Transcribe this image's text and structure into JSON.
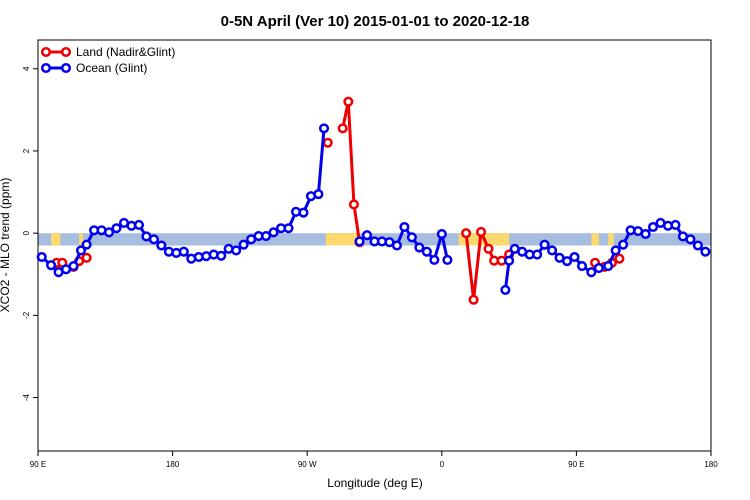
{
  "chart_data": {
    "type": "line",
    "title": "0-5N April (Ver 10)   2015-01-01 to 2020-12-18",
    "xlabel": "Longitude (deg E)",
    "ylabel": "XCO2 - MLO trend (ppm)",
    "xlim": [
      0,
      360
    ],
    "ylim": [
      -5.3,
      4.7
    ],
    "x_ticks": [
      {
        "value": 0,
        "label": "90 E"
      },
      {
        "value": 72,
        "label": "180"
      },
      {
        "value": 144,
        "label": "90 W"
      },
      {
        "value": 216,
        "label": "0"
      },
      {
        "value": 288,
        "label": "90 E"
      },
      {
        "value": 360,
        "label": "180"
      }
    ],
    "y_ticks": [
      {
        "value": 4,
        "label": "4"
      },
      {
        "value": 2,
        "label": "2"
      },
      {
        "value": 0,
        "label": "0"
      },
      {
        "value": -2,
        "label": "-2"
      },
      {
        "value": -4,
        "label": "-4"
      }
    ],
    "legend": {
      "position": "top-left",
      "entries": [
        {
          "name": "Land (Nadir&Glint)",
          "color": "#ee0000"
        },
        {
          "name": "Ocean (Glint)",
          "color": "#0000ee"
        }
      ]
    },
    "band": {
      "ymin": -0.3,
      "ymax": 0,
      "ocean_color": "#a6bde0",
      "land_color": "#fcd86e",
      "land_ranges": [
        [
          7,
          12
        ],
        [
          22,
          24
        ],
        [
          154,
          172
        ],
        [
          225,
          252
        ],
        [
          296,
          300
        ],
        [
          305,
          308
        ]
      ]
    },
    "series": [
      {
        "name": "Land (Nadir&Glint)",
        "color": "#ee0000",
        "segments": [
          [
            [
              10,
              -0.72
            ],
            [
              13,
              -0.72
            ]
          ],
          [
            [
              19,
              -0.82
            ],
            [
              22,
              -0.68
            ],
            [
              26,
              -0.6
            ]
          ],
          [
            [
              155,
              2.2
            ]
          ],
          [
            [
              163,
              2.55
            ],
            [
              166,
              3.2
            ],
            [
              169,
              0.7
            ],
            [
              172,
              -0.22
            ]
          ],
          [
            [
              229,
              0
            ],
            [
              233,
              -1.62
            ],
            [
              237,
              0.03
            ],
            [
              241,
              -0.38
            ],
            [
              244,
              -0.67
            ],
            [
              248,
              -0.67
            ],
            [
              252,
              -0.52
            ]
          ],
          [
            [
              298,
              -0.72
            ],
            [
              303,
              -0.82
            ],
            [
              307,
              -0.72
            ],
            [
              311,
              -0.62
            ]
          ]
        ]
      },
      {
        "name": "Ocean (Glint)",
        "color": "#0000ee",
        "segments": [
          [
            [
              2,
              -0.58
            ],
            [
              7,
              -0.78
            ],
            [
              11,
              -0.95
            ],
            [
              15,
              -0.88
            ],
            [
              19,
              -0.8
            ],
            [
              23,
              -0.42
            ],
            [
              26,
              -0.28
            ],
            [
              30,
              0.07
            ],
            [
              34,
              0.07
            ],
            [
              38,
              0.02
            ],
            [
              42,
              0.12
            ],
            [
              46,
              0.25
            ],
            [
              50,
              0.18
            ],
            [
              54,
              0.2
            ],
            [
              58,
              -0.08
            ],
            [
              62,
              -0.15
            ],
            [
              66,
              -0.3
            ],
            [
              70,
              -0.45
            ],
            [
              74,
              -0.48
            ],
            [
              78,
              -0.45
            ],
            [
              82,
              -0.62
            ],
            [
              86,
              -0.58
            ],
            [
              90,
              -0.56
            ],
            [
              94,
              -0.52
            ],
            [
              98,
              -0.55
            ],
            [
              102,
              -0.38
            ],
            [
              106,
              -0.42
            ],
            [
              110,
              -0.28
            ],
            [
              114,
              -0.15
            ],
            [
              118,
              -0.07
            ],
            [
              122,
              -0.07
            ],
            [
              126,
              0.02
            ],
            [
              130,
              0.12
            ],
            [
              134,
              0.12
            ],
            [
              138,
              0.52
            ],
            [
              142,
              0.5
            ],
            [
              146,
              0.9
            ],
            [
              150,
              0.95
            ],
            [
              153,
              2.55
            ]
          ],
          [
            [
              172,
              -0.2
            ],
            [
              176,
              -0.05
            ],
            [
              180,
              -0.2
            ],
            [
              184,
              -0.2
            ],
            [
              188,
              -0.22
            ],
            [
              192,
              -0.3
            ],
            [
              196,
              0.15
            ],
            [
              200,
              -0.1
            ],
            [
              204,
              -0.35
            ],
            [
              208,
              -0.45
            ],
            [
              212,
              -0.65
            ],
            [
              216,
              -0.02
            ],
            [
              219,
              -0.65
            ]
          ],
          [
            [
              250,
              -1.38
            ],
            [
              252,
              -0.67
            ],
            [
              255,
              -0.38
            ],
            [
              259,
              -0.45
            ],
            [
              263,
              -0.52
            ],
            [
              267,
              -0.52
            ],
            [
              271,
              -0.28
            ],
            [
              275,
              -0.42
            ],
            [
              279,
              -0.6
            ],
            [
              283,
              -0.68
            ],
            [
              287,
              -0.58
            ],
            [
              291,
              -0.8
            ],
            [
              296,
              -0.95
            ],
            [
              300,
              -0.85
            ],
            [
              305,
              -0.8
            ],
            [
              309,
              -0.42
            ],
            [
              313,
              -0.28
            ],
            [
              317,
              0.07
            ],
            [
              321,
              0.05
            ],
            [
              325,
              -0.02
            ],
            [
              329,
              0.15
            ],
            [
              333,
              0.25
            ],
            [
              337,
              0.18
            ],
            [
              341,
              0.2
            ],
            [
              345,
              -0.08
            ],
            [
              349,
              -0.15
            ],
            [
              353,
              -0.3
            ],
            [
              357,
              -0.45
            ]
          ]
        ]
      }
    ]
  }
}
